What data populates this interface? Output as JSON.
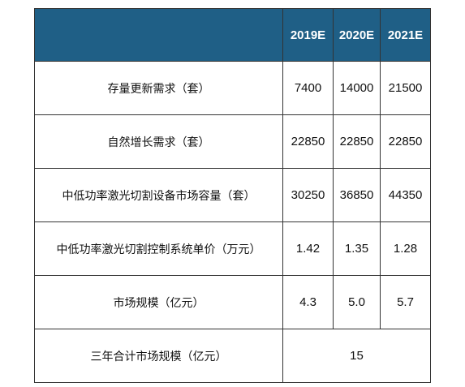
{
  "table": {
    "header": {
      "corner": "",
      "years": [
        "2019E",
        "2020E",
        "2021E"
      ]
    },
    "rows": [
      {
        "label": "存量更新需求（套）",
        "values": [
          "7400",
          "14000",
          "21500"
        ]
      },
      {
        "label": "自然增长需求（套）",
        "values": [
          "22850",
          "22850",
          "22850"
        ]
      },
      {
        "label": "中低功率激光切割设备市场容量（套）",
        "values": [
          "30250",
          "36850",
          "44350"
        ]
      },
      {
        "label": "中低功率激光切割控制系统单价（万元）",
        "values": [
          "1.42",
          "1.35",
          "1.28"
        ]
      },
      {
        "label": "市场规模（亿元）",
        "values": [
          "4.3",
          "5.0",
          "5.7"
        ]
      }
    ],
    "total_row": {
      "label": "三年合计市场规模（亿元）",
      "value": "15"
    }
  },
  "colors": {
    "header_bg": "#1f5f86",
    "header_text": "#ffffff",
    "border": "#333333",
    "body_text": "#111111"
  }
}
